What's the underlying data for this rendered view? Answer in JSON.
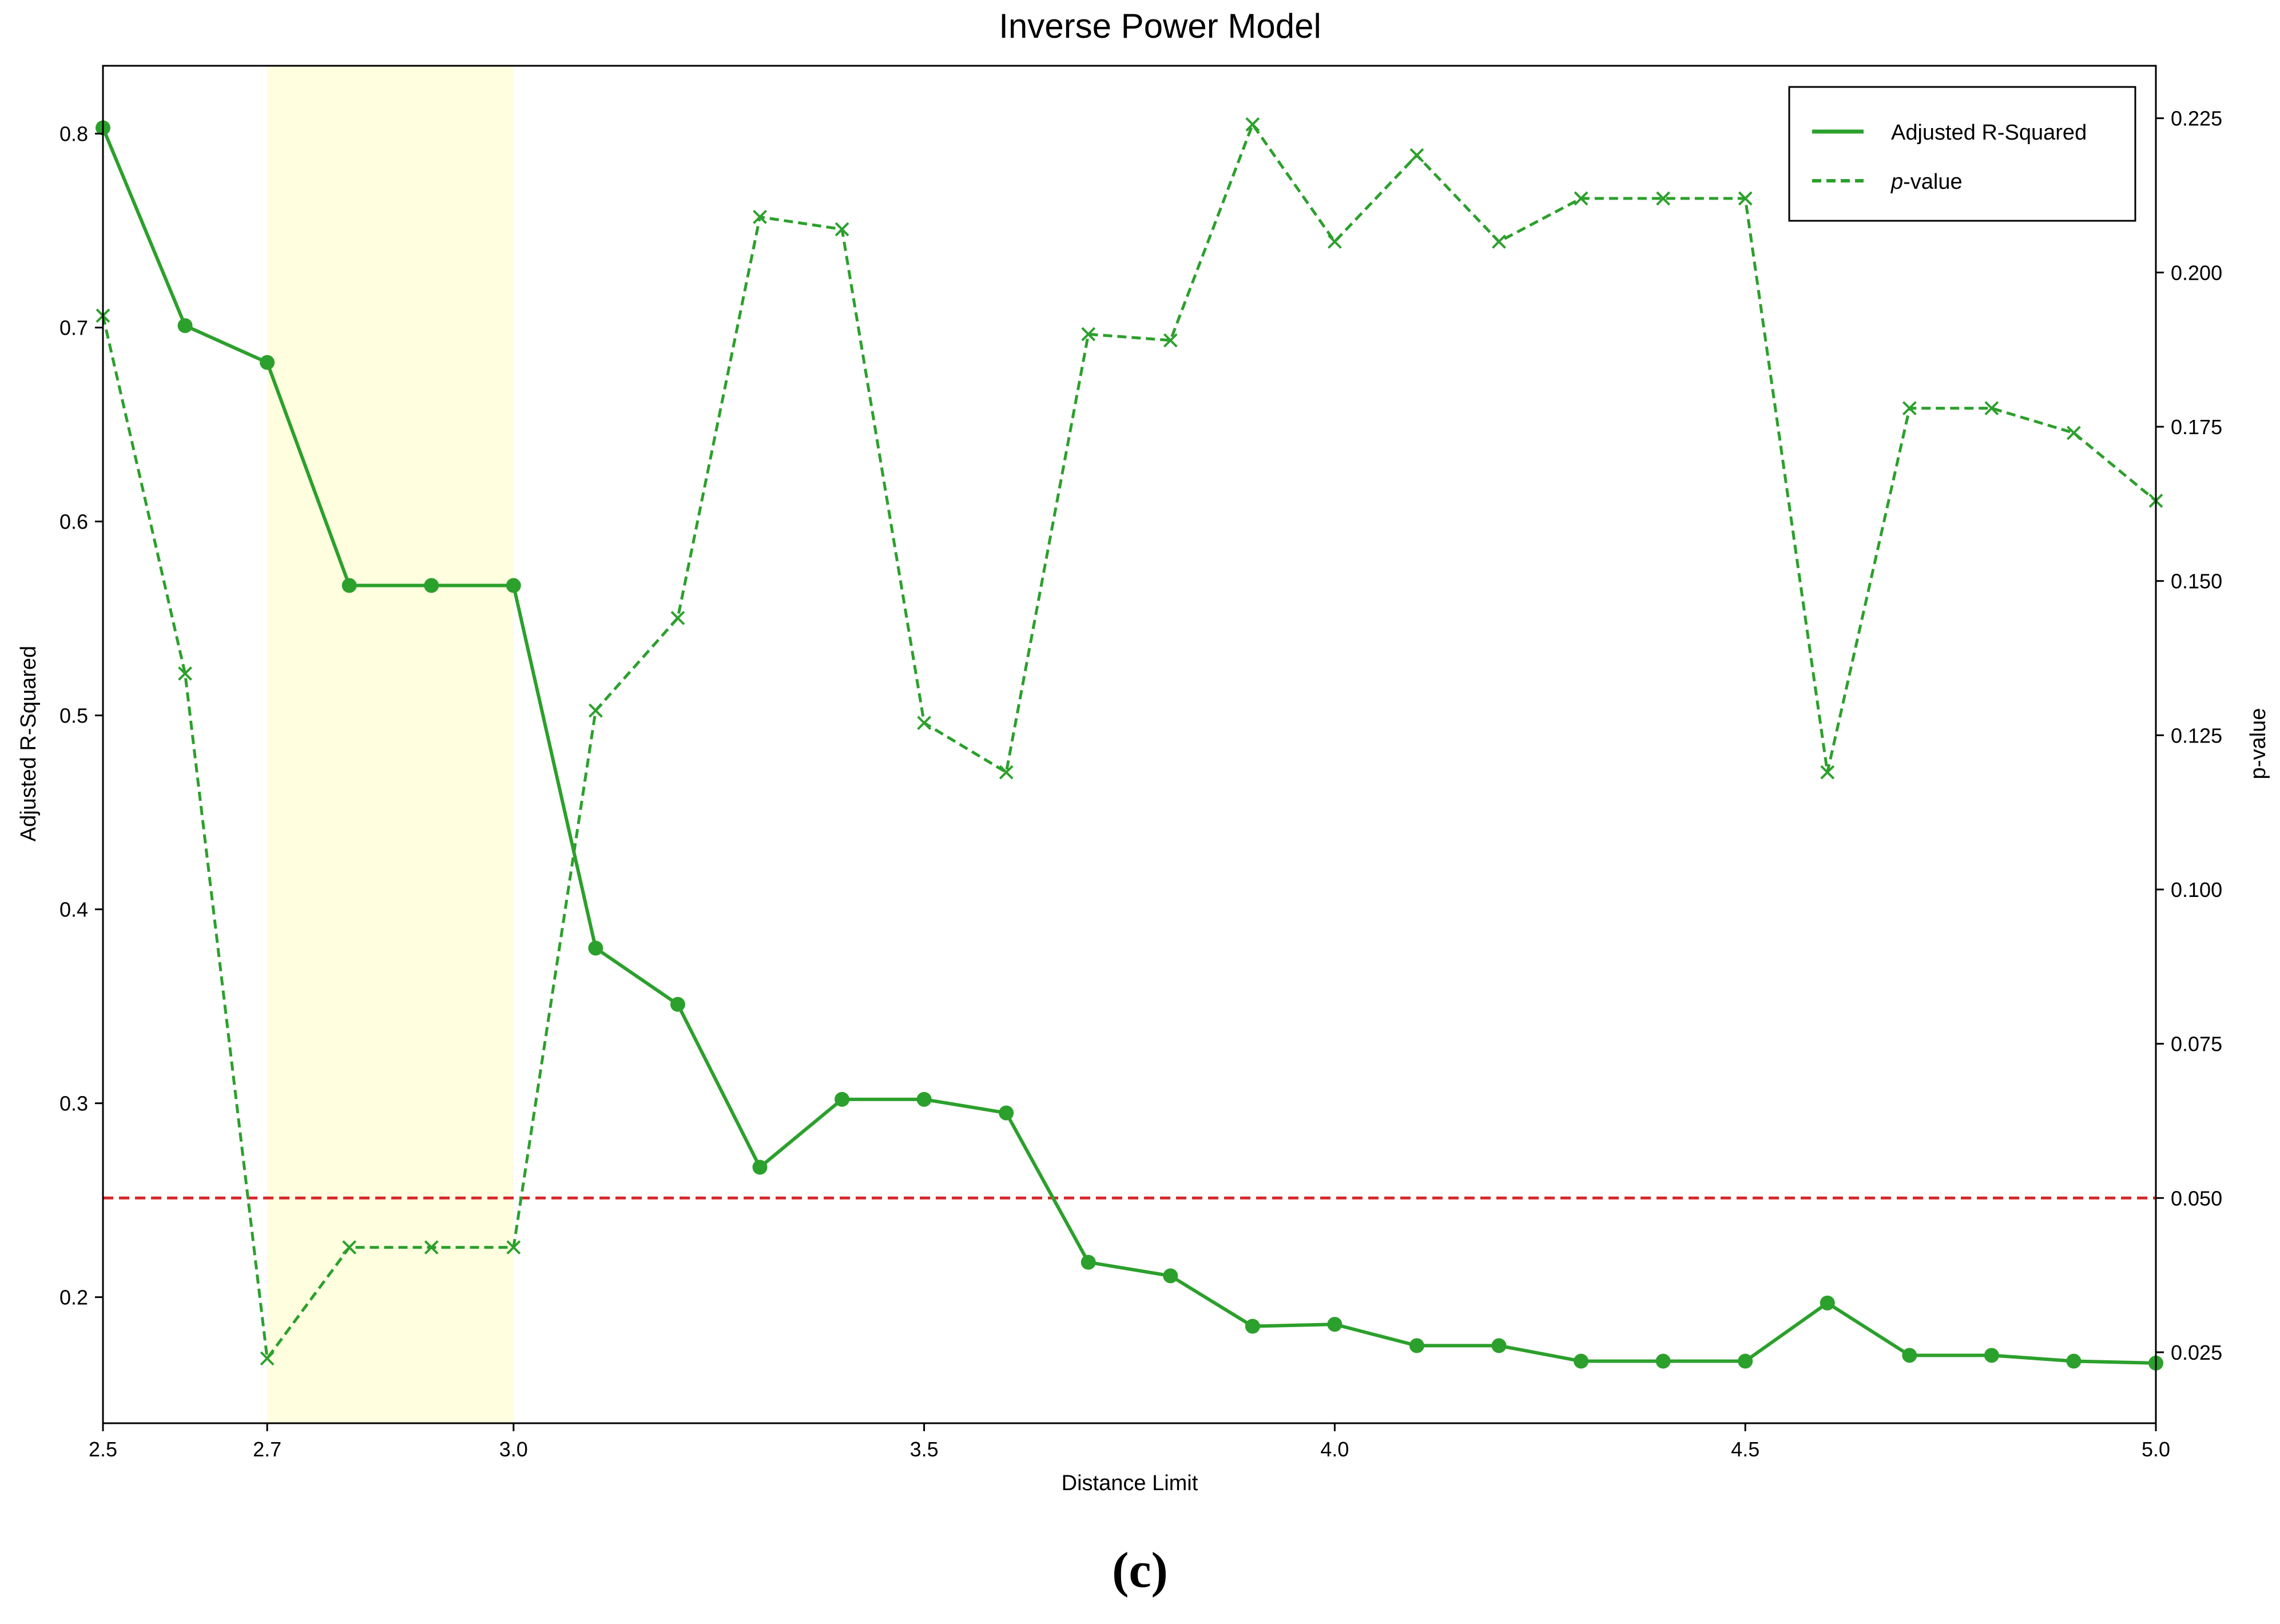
{
  "caption": "(c)",
  "colors": {
    "series": "#2ca02c",
    "threshold": "#d62728",
    "highlight": "#ffffe0"
  },
  "chart_data": {
    "type": "line",
    "title": "Inverse Power Model",
    "xlabel": "Distance Limit",
    "ylabel": "Adjusted R-Squared",
    "y2label": "p-value",
    "xlim": [
      2.5,
      5.0
    ],
    "ylim": [
      0.135,
      0.835
    ],
    "y2lim": [
      0.0135,
      0.2335
    ],
    "xticks": [
      "2.5",
      "2.7",
      "3.0",
      "3.5",
      "4.0",
      "4.5",
      "5.0"
    ],
    "yticks": [
      "0.2",
      "0.3",
      "0.4",
      "0.5",
      "0.6",
      "0.7",
      "0.8"
    ],
    "y2ticks": [
      "0.025",
      "0.050",
      "0.075",
      "0.100",
      "0.125",
      "0.150",
      "0.175",
      "0.200",
      "0.225"
    ],
    "x": [
      2.5,
      2.6,
      2.7,
      2.8,
      2.9,
      3.0,
      3.1,
      3.2,
      3.3,
      3.4,
      3.5,
      3.6,
      3.7,
      3.8,
      3.9,
      4.0,
      4.1,
      4.2,
      4.3,
      4.4,
      4.5,
      4.6,
      4.7,
      4.8,
      4.9,
      5.0
    ],
    "series": [
      {
        "name": "Adjusted R-Squared",
        "axis": "left",
        "style": "solid",
        "marker": "circle",
        "values": [
          0.803,
          0.701,
          0.682,
          0.567,
          0.567,
          0.567,
          0.38,
          0.351,
          0.267,
          0.302,
          0.302,
          0.295,
          0.218,
          0.211,
          0.185,
          0.186,
          0.175,
          0.175,
          0.167,
          0.167,
          0.167,
          0.197,
          0.17,
          0.17,
          0.167,
          0.166
        ]
      },
      {
        "name": "p-value",
        "axis": "right",
        "style": "dashed",
        "marker": "x",
        "values": [
          0.193,
          0.135,
          0.024,
          0.042,
          0.042,
          0.042,
          0.129,
          0.144,
          0.209,
          0.207,
          0.127,
          0.119,
          0.19,
          0.189,
          0.224,
          0.205,
          0.219,
          0.205,
          0.212,
          0.212,
          0.212,
          0.119,
          0.178,
          0.178,
          0.174,
          0.163
        ]
      }
    ],
    "threshold": {
      "axis": "right",
      "value": 0.05
    },
    "highlight_span": [
      2.7,
      3.0
    ],
    "grid": false,
    "legend": "top-right"
  }
}
